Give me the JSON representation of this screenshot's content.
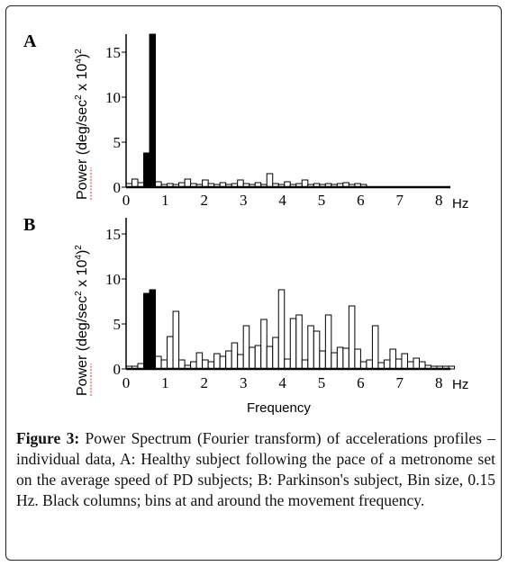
{
  "chart_data": [
    {
      "type": "bar",
      "panel": "A",
      "ylabel_parts": [
        "Power (",
        "deg",
        "/sec",
        "2",
        " x 10",
        "4",
        ")",
        "2"
      ],
      "yticks": [
        "15",
        "10",
        "5",
        "0"
      ],
      "xticks": [
        "0",
        "1",
        "2",
        "3",
        "4",
        "5",
        "6",
        "7",
        "8"
      ],
      "xunit": "Hz",
      "xlabel": "",
      "ylim": [
        0,
        17
      ],
      "bin_width": 0.15,
      "bins_start": [
        0,
        0.15,
        0.3,
        0.45,
        0.6,
        0.75,
        0.9,
        1.05,
        1.2,
        1.35,
        1.5,
        1.65,
        1.8,
        1.95,
        2.1,
        2.25,
        2.4,
        2.55,
        2.7,
        2.85,
        3.0,
        3.15,
        3.3,
        3.45,
        3.6,
        3.75,
        3.9,
        4.05,
        4.2,
        4.35,
        4.5,
        4.65,
        4.8,
        4.95,
        5.1,
        5.25,
        5.4,
        5.55,
        5.7,
        5.85,
        6.0
      ],
      "values": [
        0.4,
        0.9,
        0.5,
        3.8,
        17.0,
        0.6,
        0.3,
        0.4,
        0.3,
        0.5,
        0.9,
        0.4,
        0.3,
        0.8,
        0.4,
        0.3,
        0.5,
        0.3,
        0.4,
        0.8,
        0.4,
        0.3,
        0.5,
        0.3,
        1.5,
        0.4,
        0.3,
        0.6,
        0.3,
        0.4,
        0.8,
        0.3,
        0.4,
        0.3,
        0.4,
        0.3,
        0.4,
        0.5,
        0.3,
        0.4,
        0.3
      ],
      "highlight": [
        false,
        false,
        false,
        true,
        true,
        false,
        false,
        false,
        false,
        false,
        false,
        false,
        false,
        false,
        false,
        false,
        false,
        false,
        false,
        false,
        false,
        false,
        false,
        false,
        false,
        false,
        false,
        false,
        false,
        false,
        false,
        false,
        false,
        false,
        false,
        false,
        false,
        false,
        false,
        false,
        false
      ]
    },
    {
      "type": "bar",
      "panel": "B",
      "ylabel_parts": [
        "Power (",
        "deg",
        "/sec",
        "2",
        " x 10",
        "4",
        ")",
        "2"
      ],
      "yticks": [
        "15",
        "10",
        "5",
        "0"
      ],
      "xticks": [
        "0",
        "1",
        "2",
        "3",
        "4",
        "5",
        "6",
        "7",
        "8"
      ],
      "xunit": "Hz",
      "xlabel": "Frequency",
      "ylim": [
        0,
        17
      ],
      "bin_width": 0.15,
      "bins_start": [
        0,
        0.15,
        0.3,
        0.45,
        0.6,
        0.75,
        0.9,
        1.05,
        1.2,
        1.35,
        1.5,
        1.65,
        1.8,
        1.95,
        2.1,
        2.25,
        2.4,
        2.55,
        2.7,
        2.85,
        3.0,
        3.15,
        3.3,
        3.45,
        3.6,
        3.75,
        3.9,
        4.05,
        4.2,
        4.35,
        4.5,
        4.65,
        4.8,
        4.95,
        5.1,
        5.25,
        5.4,
        5.55,
        5.7,
        5.85,
        6.0,
        6.15,
        6.3,
        6.45,
        6.6,
        6.75,
        6.9,
        7.05,
        7.2,
        7.35,
        7.5,
        7.65,
        7.8,
        7.95,
        8.1,
        8.25
      ],
      "values": [
        0.3,
        0.3,
        0.6,
        8.4,
        8.8,
        1.4,
        1.0,
        3.6,
        6.4,
        1.0,
        0.4,
        0.8,
        1.8,
        1.0,
        0.8,
        1.7,
        1.4,
        2.0,
        2.9,
        1.6,
        4.8,
        2.4,
        2.6,
        5.5,
        2.5,
        3.5,
        8.8,
        1.1,
        5.6,
        6.0,
        1.0,
        4.8,
        4.2,
        2.0,
        6.0,
        1.8,
        2.4,
        2.3,
        7.0,
        2.2,
        0.8,
        1.0,
        4.8,
        0.7,
        1.0,
        2.2,
        1.1,
        1.7,
        0.8,
        1.2,
        0.8,
        0.4,
        0.3,
        0.3,
        0.3,
        0.3
      ],
      "highlight": [
        false,
        false,
        false,
        true,
        true,
        false,
        false,
        false,
        false,
        false,
        false,
        false,
        false,
        false,
        false,
        false,
        false,
        false,
        false,
        false,
        false,
        false,
        false,
        false,
        false,
        false,
        false,
        false,
        false,
        false,
        false,
        false,
        false,
        false,
        false,
        false,
        false,
        false,
        false,
        false,
        false,
        false,
        false,
        false,
        false,
        false,
        false,
        false,
        false,
        false,
        false,
        false,
        false,
        false,
        false,
        false
      ]
    }
  ],
  "caption": {
    "label": "Figure 3:",
    "text": "Power Spectrum (Fourier transform) of accelerations profiles – individual data, A: Healthy subject following the pace of a metronome set on the average speed of PD subjects; B: Parkinson's subject, Bin size, 0.15 Hz. Black columns; bins at and around the movement frequency."
  },
  "colors": {
    "highlight_bar": "#000000",
    "bar_fill": "#ffffff",
    "bar_stroke": "#000000",
    "ylabel_underline": "#d0342c"
  }
}
